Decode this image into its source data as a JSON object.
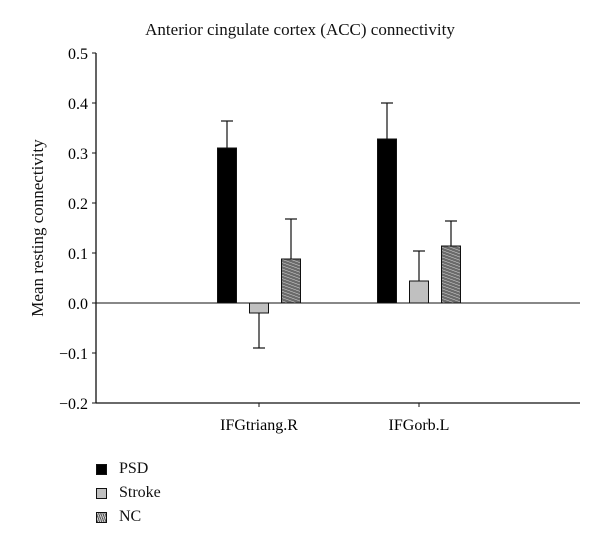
{
  "chart_data": {
    "type": "bar",
    "title": "Anterior cingulate cortex (ACC) connectivity",
    "xlabel": "",
    "ylabel": "Mean resting connectivity",
    "ylim": [
      -0.2,
      0.5
    ],
    "yticks": [
      "0.5",
      "0.4",
      "0.3",
      "0.2",
      "0.1",
      "0.0",
      "−0.1",
      "−0.2"
    ],
    "ytick_values": [
      0.5,
      0.4,
      0.3,
      0.2,
      0.1,
      0.0,
      -0.1,
      -0.2
    ],
    "categories": [
      "IFGtriang.R",
      "IFGorb.L"
    ],
    "series": [
      {
        "name": "PSD",
        "values": [
          0.31,
          0.328
        ],
        "error": [
          0.054,
          0.072
        ],
        "color": "#000000"
      },
      {
        "name": "Stroke",
        "values": [
          -0.02,
          0.044
        ],
        "error": [
          0.07,
          0.06
        ],
        "color": "#c0c0c0"
      },
      {
        "name": "NC",
        "values": [
          0.088,
          0.114
        ],
        "error": [
          0.08,
          0.05
        ],
        "color": "#555555"
      }
    ],
    "legend_position": "bottom-left",
    "grid": false
  },
  "legend": {
    "items": [
      {
        "label": "PSD"
      },
      {
        "label": "Stroke"
      },
      {
        "label": "NC"
      }
    ]
  }
}
